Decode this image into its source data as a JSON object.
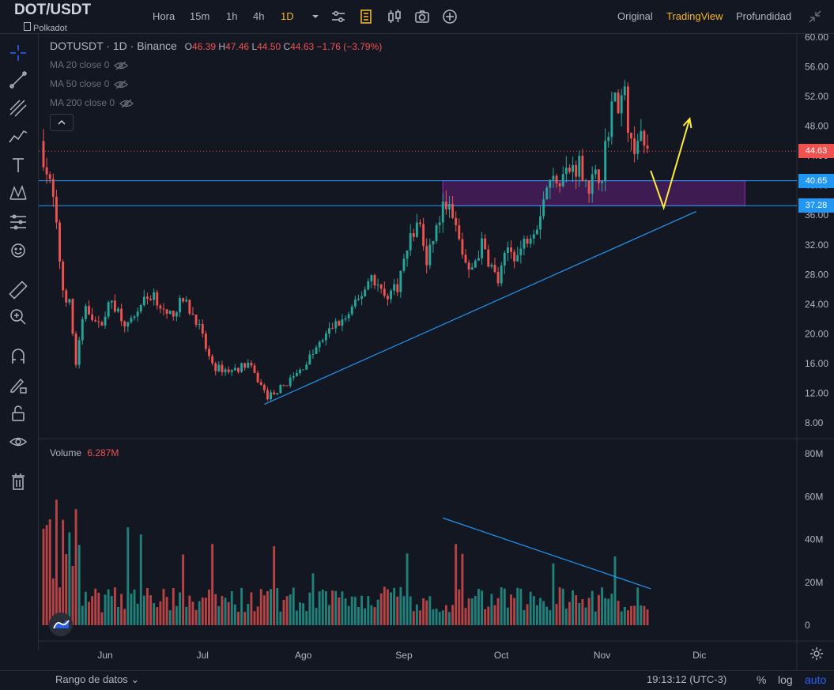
{
  "header": {
    "symbol": "DOT/USDT",
    "exchange_label": "Polkadot",
    "timeframes": [
      "Hora",
      "15m",
      "1h",
      "4h",
      "1D"
    ],
    "active_timeframe": "1D",
    "view_modes": [
      "Original",
      "TradingView",
      "Profundidad"
    ],
    "active_view": "TradingView"
  },
  "legend": {
    "title": "DOTUSDT · 1D · Binance",
    "o_label": "O",
    "o": "46.39",
    "h_label": "H",
    "h": "47.46",
    "l_label": "L",
    "l": "44.50",
    "c_label": "C",
    "c": "44.63",
    "change": "−1.76 (−3.79%)",
    "ma": [
      "MA 20 close 0",
      "MA 50 close 0",
      "MA 200 close 0"
    ]
  },
  "volume_legend": {
    "label": "Volume",
    "value": "6.287M"
  },
  "bottom": {
    "range": "Rango de datos",
    "clock": "19:13:12 (UTC-3)",
    "percent": "%",
    "log": "log",
    "auto": "auto"
  },
  "colors": {
    "up": "#26a69a",
    "down": "#ef5350",
    "accent": "#f7b52c",
    "line": "#2196f3",
    "zone": "#8e24aa",
    "arrow": "#ffeb3b"
  },
  "icons": [
    "crosshair-icon",
    "trendline-icon",
    "fib-icon",
    "pattern-icon",
    "text-icon",
    "xabcd-icon",
    "measure-icon",
    "emoji-icon",
    "ruler-icon",
    "zoom-icon",
    "magnet-icon",
    "lock-drawing-icon",
    "lock-icon",
    "eye-icon",
    "trash-icon"
  ],
  "chart_data": {
    "type": "candlestick",
    "x_ticks": [
      "Jun",
      "Jul",
      "Ago",
      "Sep",
      "Oct",
      "Nov",
      "Dic"
    ],
    "y_ticks": [
      "60.00",
      "56.00",
      "52.00",
      "48.00",
      "44.00",
      "40.00",
      "36.00",
      "32.00",
      "28.00",
      "24.00",
      "20.00",
      "16.00",
      "12.00",
      "8.00"
    ],
    "ylim": [
      6,
      60
    ],
    "volume_ticks": [
      "80M",
      "60M",
      "40M",
      "20M",
      "0"
    ],
    "volume_ylim": [
      0,
      80
    ],
    "last_price": "44.63",
    "levels": [
      {
        "label": "40.65",
        "value": 40.65
      },
      {
        "label": "37.28",
        "value": 37.28
      }
    ],
    "zone": {
      "from": "2021-09-13",
      "to": "2021-12-15",
      "low": 37.28,
      "high": 40.65
    },
    "support_line": {
      "from": [
        "2021-07-20",
        10.5
      ],
      "to": [
        "2021-11-30",
        36.5
      ]
    },
    "volume_trendline": {
      "from": [
        "2021-09-13",
        50
      ],
      "to": [
        "2021-11-16",
        17
      ]
    },
    "projection": [
      [
        "2021-11-16",
        42.0
      ],
      [
        "2021-11-20",
        37.0
      ],
      [
        "2021-11-28",
        49.0
      ]
    ],
    "close_path": [
      [
        "2021-05-13",
        44.0
      ],
      [
        "2021-05-16",
        38.0
      ],
      [
        "2021-05-19",
        26.0
      ],
      [
        "2021-05-21",
        24.0
      ],
      [
        "2021-05-23",
        16.0
      ],
      [
        "2021-05-26",
        24.0
      ],
      [
        "2021-05-30",
        21.0
      ],
      [
        "2021-06-03",
        24.5
      ],
      [
        "2021-06-08",
        21.0
      ],
      [
        "2021-06-12",
        24.0
      ],
      [
        "2021-06-16",
        25.5
      ],
      [
        "2021-06-20",
        22.0
      ],
      [
        "2021-06-25",
        24.5
      ],
      [
        "2021-06-29",
        22.0
      ],
      [
        "2021-07-04",
        15.5
      ],
      [
        "2021-07-10",
        15.0
      ],
      [
        "2021-07-15",
        16.0
      ],
      [
        "2021-07-19",
        13.0
      ],
      [
        "2021-07-21",
        11.5
      ],
      [
        "2021-07-26",
        13.0
      ],
      [
        "2021-07-31",
        15.0
      ],
      [
        "2021-08-05",
        18.0
      ],
      [
        "2021-08-10",
        21.0
      ],
      [
        "2021-08-14",
        22.0
      ],
      [
        "2021-08-18",
        24.5
      ],
      [
        "2021-08-22",
        28.0
      ],
      [
        "2021-08-26",
        25.0
      ],
      [
        "2021-08-30",
        26.5
      ],
      [
        "2021-09-03",
        33.0
      ],
      [
        "2021-09-06",
        35.0
      ],
      [
        "2021-09-08",
        29.0
      ],
      [
        "2021-09-10",
        33.0
      ],
      [
        "2021-09-14",
        38.0
      ],
      [
        "2021-09-17",
        34.0
      ],
      [
        "2021-09-21",
        28.0
      ],
      [
        "2021-09-25",
        32.0
      ],
      [
        "2021-09-30",
        27.0
      ],
      [
        "2021-10-03",
        31.5
      ],
      [
        "2021-10-06",
        30.5
      ],
      [
        "2021-10-10",
        34.0
      ],
      [
        "2021-10-12",
        35.0
      ],
      [
        "2021-10-15",
        40.0
      ],
      [
        "2021-10-18",
        41.0
      ],
      [
        "2021-10-22",
        42.0
      ],
      [
        "2021-10-25",
        43.0
      ],
      [
        "2021-10-28",
        40.0
      ],
      [
        "2021-11-01",
        42.0
      ],
      [
        "2021-11-04",
        51.0
      ],
      [
        "2021-11-08",
        52.0
      ],
      [
        "2021-11-10",
        45.0
      ],
      [
        "2021-11-12",
        46.5
      ],
      [
        "2021-11-15",
        44.63
      ]
    ]
  }
}
